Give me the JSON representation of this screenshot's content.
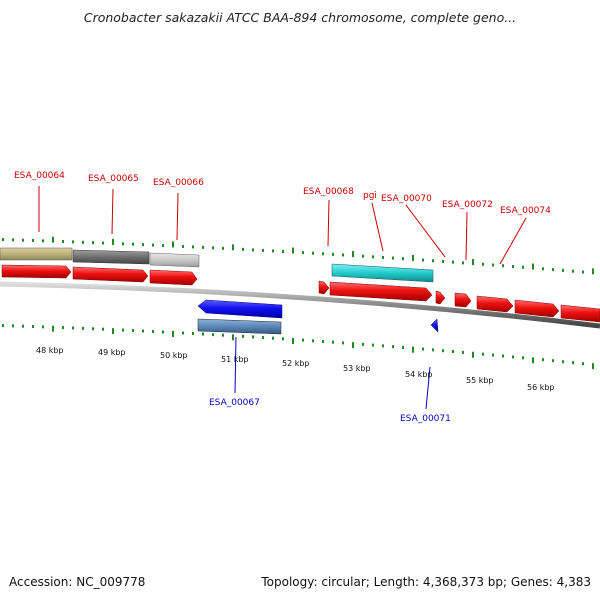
{
  "title": "Cronobacter sakazakii ATCC BAA-894 chromosome, complete geno...",
  "footer": {
    "accession": "Accession: NC_009778",
    "topology": "Topology: circular; Length: 4,368,373 bp; Genes: 4,383"
  },
  "colors": {
    "forward_cds": "#ee1111",
    "reverse_cds": "#1111ee",
    "label_forward": "#cc0000",
    "label_reverse": "#0000cc",
    "tick": "#228822",
    "backbone": "#888888"
  },
  "scale_labels": [
    "48 kbp",
    "49 kbp",
    "50 kbp",
    "51 kbp",
    "52 kbp",
    "53 kbp",
    "54 kbp",
    "55 kbp",
    "56 kbp"
  ],
  "forward_labels": [
    "ESA_00064",
    "ESA_00065",
    "ESA_00066",
    "ESA_00068",
    "pgi",
    "ESA_00070",
    "ESA_00072",
    "ESA_00074"
  ],
  "reverse_labels": [
    "ESA_00067",
    "ESA_00071"
  ]
}
